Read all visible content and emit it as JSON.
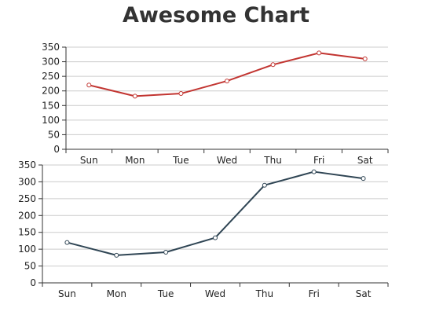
{
  "title": "Awesome Chart",
  "chart_data": [
    {
      "type": "line",
      "categories": [
        "Sun",
        "Mon",
        "Tue",
        "Wed",
        "Thu",
        "Fri",
        "Sat"
      ],
      "series": [
        {
          "values": [
            220,
            182,
            191,
            234,
            290,
            330,
            310
          ],
          "color": "#c23531"
        }
      ],
      "ylim": [
        0,
        350
      ],
      "yticks": [
        0,
        50,
        100,
        150,
        200,
        250,
        300,
        350
      ],
      "grid": true,
      "legend": "none"
    },
    {
      "type": "line",
      "categories": [
        "Sun",
        "Mon",
        "Tue",
        "Wed",
        "Thu",
        "Fri",
        "Sat"
      ],
      "series": [
        {
          "values": [
            120,
            82,
            91,
            134,
            290,
            330,
            310
          ],
          "color": "#2f4554"
        }
      ],
      "ylim": [
        0,
        350
      ],
      "yticks": [
        0,
        50,
        100,
        150,
        200,
        250,
        300,
        350
      ],
      "grid": true,
      "legend": "none"
    }
  ]
}
